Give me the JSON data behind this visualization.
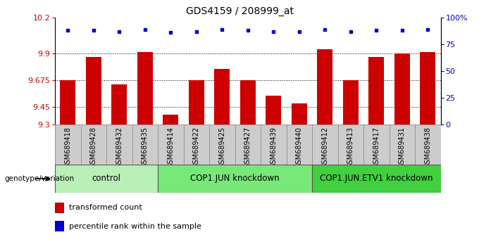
{
  "title": "GDS4159 / 208999_at",
  "samples": [
    "GSM689418",
    "GSM689428",
    "GSM689432",
    "GSM689435",
    "GSM689414",
    "GSM689422",
    "GSM689425",
    "GSM689427",
    "GSM689439",
    "GSM689440",
    "GSM689412",
    "GSM689413",
    "GSM689417",
    "GSM689431",
    "GSM689438"
  ],
  "bar_values": [
    9.675,
    9.865,
    9.635,
    9.91,
    9.385,
    9.675,
    9.765,
    9.675,
    9.545,
    9.48,
    9.935,
    9.67,
    9.865,
    9.895,
    9.91
  ],
  "percentile_values": [
    88,
    88,
    87,
    89,
    86,
    87,
    89,
    88,
    87,
    87,
    89,
    87,
    88,
    88,
    89
  ],
  "ymin": 9.3,
  "ymax": 10.2,
  "yticks": [
    9.3,
    9.45,
    9.675,
    9.9,
    10.2
  ],
  "ytick_labels": [
    "9.3",
    "9.45",
    "9.675",
    "9.9",
    "10.2"
  ],
  "right_yticks": [
    0,
    25,
    50,
    75,
    100
  ],
  "right_ytick_labels": [
    "0",
    "25",
    "50",
    "75",
    "100%"
  ],
  "groups": [
    {
      "label": "control",
      "start": 0,
      "end": 4,
      "color": "#b8f0b8"
    },
    {
      "label": "COP1.JUN knockdown",
      "start": 4,
      "end": 10,
      "color": "#78e878"
    },
    {
      "label": "COP1.JUN.ETV1 knockdown",
      "start": 10,
      "end": 15,
      "color": "#40d040"
    }
  ],
  "bar_color": "#cc0000",
  "marker_color": "#0000cc",
  "dotted_line_y": [
    9.45,
    9.675,
    9.9
  ],
  "genotype_label": "genotype/variation",
  "legend_bar_label": "transformed count",
  "legend_marker_label": "percentile rank within the sample",
  "title_fontsize": 10,
  "tick_fontsize": 8,
  "sample_fontsize": 7,
  "group_label_fontsize": 8.5
}
